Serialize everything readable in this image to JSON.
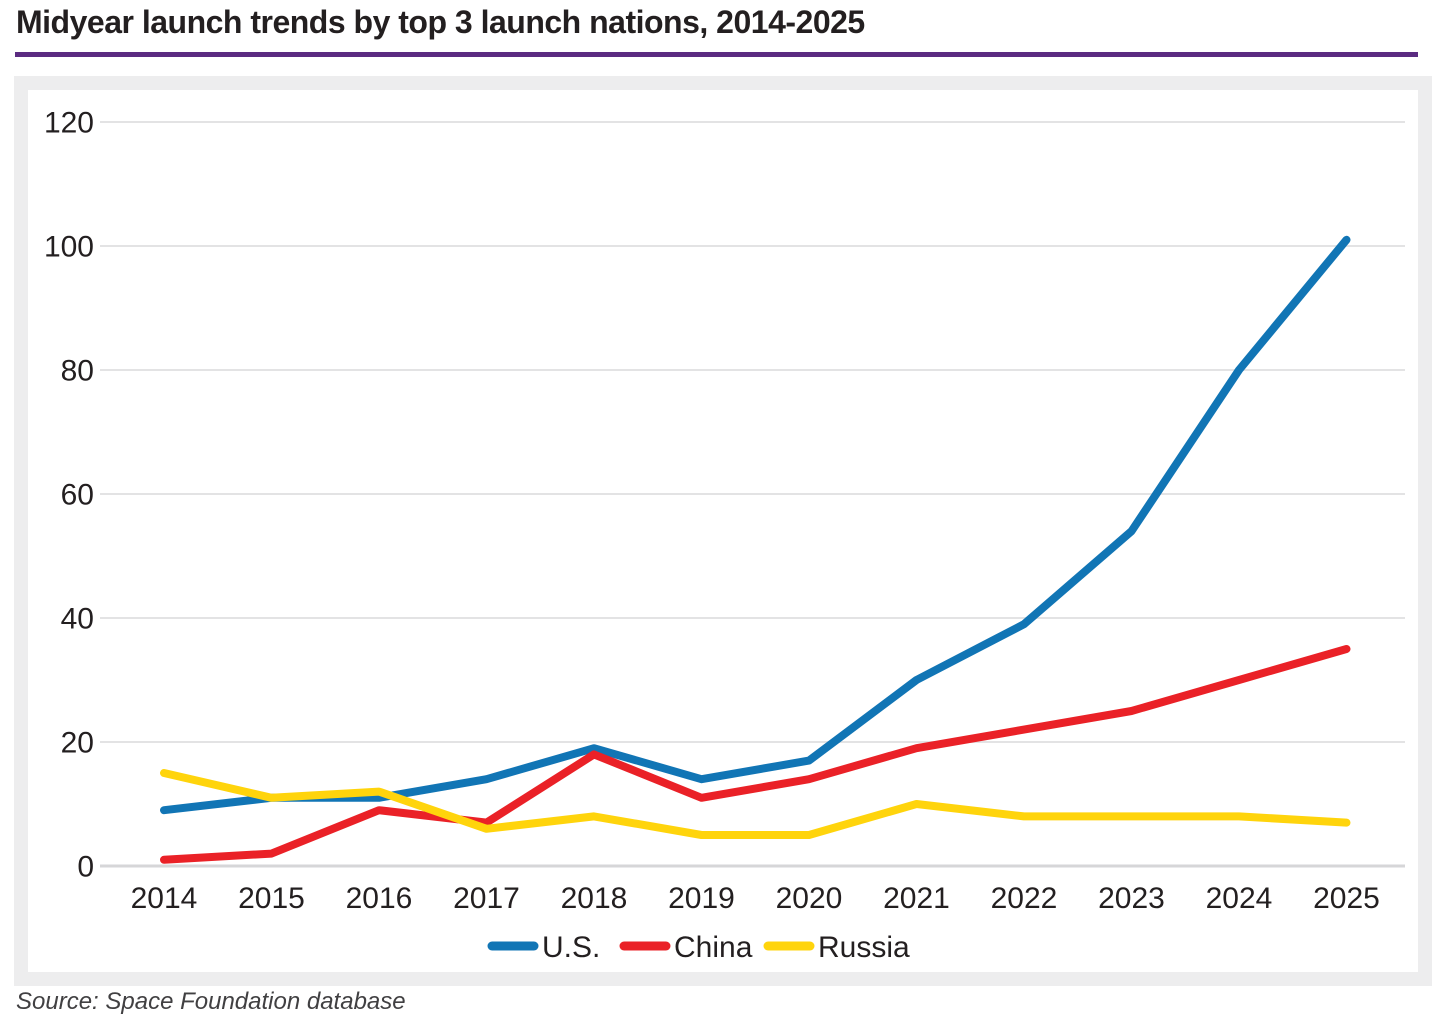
{
  "title": "Midyear launch trends by top 3 launch nations, 2014-2025",
  "source": "Source: Space Foundation database",
  "colors": {
    "title_rule": "#5b2b81",
    "grid": "#e3e3e4",
    "baseline": "#d6d6d8",
    "axis_text": "#231f20",
    "us_blue": "#1175b5",
    "china_red": "#ea2127",
    "russia_yellow": "#ffd40c"
  },
  "chart_data": {
    "type": "line",
    "title": "Midyear launch trends by top 3 launch nations, 2014-2025",
    "categories": [
      "2014",
      "2015",
      "2016",
      "2017",
      "2018",
      "2019",
      "2020",
      "2021",
      "2022",
      "2023",
      "2024",
      "2025"
    ],
    "series": [
      {
        "name": "U.S.",
        "color": "#1175b5",
        "values": [
          9,
          11,
          11,
          14,
          19,
          14,
          17,
          30,
          39,
          54,
          80,
          101
        ]
      },
      {
        "name": "China",
        "color": "#ea2127",
        "values": [
          1,
          2,
          9,
          7,
          18,
          11,
          14,
          19,
          22,
          25,
          30,
          35
        ]
      },
      {
        "name": "Russia",
        "color": "#ffd40c",
        "values": [
          15,
          11,
          12,
          6,
          8,
          5,
          5,
          10,
          8,
          8,
          8,
          7
        ]
      }
    ],
    "xlabel": "",
    "ylabel": "",
    "ylim": [
      0,
      120
    ],
    "yticks": [
      0,
      20,
      40,
      60,
      80,
      100,
      120
    ],
    "grid": "horizontal",
    "legend_position": "bottom"
  }
}
